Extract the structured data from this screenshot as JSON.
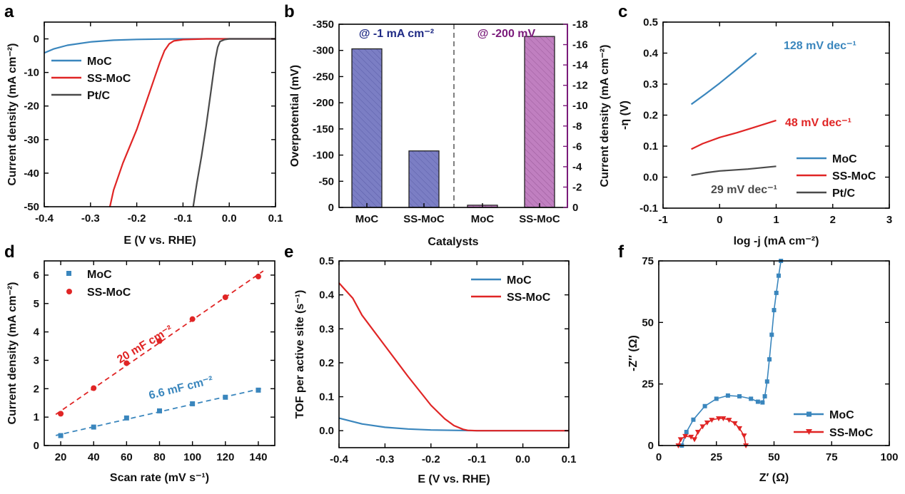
{
  "colors": {
    "moc": "#3a86bd",
    "ssmoc": "#e02525",
    "ptc": "#4a4a4a",
    "bar_blue": "#7b7ec4",
    "bar_purple": "#c07fc0",
    "text_navy": "#1f2a85",
    "text_purple": "#7a1a7a"
  },
  "chart_data": [
    {
      "id": "a",
      "panel_label": "a",
      "type": "line",
      "xlabel": "E (V vs. RHE)",
      "ylabel": "Current density (mA cm⁻²)",
      "xlim": [
        -0.4,
        0.1
      ],
      "ylim": [
        -50,
        5
      ],
      "xticks": [
        "-0.4",
        "-0.3",
        "-0.2",
        "-0.1",
        "0.0",
        "0.1"
      ],
      "yticks": [
        "-50",
        "-40",
        "-30",
        "-20",
        "-10",
        "0"
      ],
      "legend": "upper-left",
      "series": [
        {
          "name": "MoC",
          "x": [
            -0.4,
            -0.38,
            -0.35,
            -0.3,
            -0.25,
            -0.2,
            -0.15,
            -0.1,
            -0.05,
            0.0,
            0.1
          ],
          "y": [
            -4.2,
            -3.0,
            -1.9,
            -0.9,
            -0.4,
            -0.15,
            -0.05,
            -0.02,
            0,
            0,
            0
          ]
        },
        {
          "name": "SS-MoC",
          "x": [
            -0.258,
            -0.25,
            -0.23,
            -0.2,
            -0.18,
            -0.16,
            -0.15,
            -0.14,
            -0.13,
            -0.12,
            -0.1,
            -0.05,
            0.0,
            0.1
          ],
          "y": [
            -50,
            -45,
            -37,
            -27,
            -19,
            -11,
            -7,
            -3.5,
            -1.5,
            -0.6,
            -0.2,
            0,
            0,
            0
          ]
        },
        {
          "name": "Pt/C",
          "x": [
            -0.078,
            -0.07,
            -0.06,
            -0.05,
            -0.04,
            -0.035,
            -0.03,
            -0.025,
            -0.02,
            -0.01,
            0.0,
            0.1
          ],
          "y": [
            -50,
            -43,
            -35,
            -26,
            -16,
            -11,
            -6,
            -2.5,
            -0.8,
            -0.2,
            0,
            0
          ]
        }
      ]
    },
    {
      "id": "b",
      "panel_label": "b",
      "type": "bar",
      "xlabel": "Catalysts",
      "ylabel": "Overpotential (mV)",
      "ylabel_right": "Current density (mA cm⁻²)",
      "categories": [
        "MoC",
        "SS-MoC",
        "MoC",
        "SS-MoC"
      ],
      "left_axis": {
        "ylim": [
          0,
          -350
        ],
        "ticks": [
          "0",
          "-50",
          "-100",
          "-150",
          "-200",
          "-250",
          "-300",
          "-350"
        ]
      },
      "right_axis": {
        "ylim": [
          0,
          -18
        ],
        "ticks": [
          "0",
          "-2",
          "-4",
          "-6",
          "-8",
          "-10",
          "-12",
          "-14",
          "-16",
          "-18"
        ]
      },
      "groups": [
        {
          "name": "@ -1 mA cm⁻²",
          "axis": "left",
          "values": [
            -303,
            -108
          ]
        },
        {
          "name": "@ -200 mV",
          "axis": "right",
          "values": [
            -0.22,
            -16.8
          ]
        }
      ]
    },
    {
      "id": "c",
      "panel_label": "c",
      "type": "line",
      "xlabel": "log -j (mA cm⁻²)",
      "ylabel": "-η (V)",
      "xlim": [
        -1,
        3
      ],
      "ylim": [
        -0.1,
        0.5
      ],
      "xticks": [
        "-1",
        "0",
        "1",
        "2",
        "3"
      ],
      "yticks": [
        "-0.1",
        "0.0",
        "0.1",
        "0.2",
        "0.3",
        "0.4",
        "0.5"
      ],
      "legend": "lower-right",
      "series": [
        {
          "name": "MoC",
          "x": [
            -0.5,
            -0.25,
            0,
            0.25,
            0.5,
            0.65
          ],
          "y": [
            0.235,
            0.268,
            0.303,
            0.34,
            0.378,
            0.4
          ]
        },
        {
          "name": "SS-MoC",
          "x": [
            -0.5,
            -0.3,
            0,
            0.3,
            0.6,
            1.0
          ],
          "y": [
            0.09,
            0.108,
            0.128,
            0.143,
            0.16,
            0.183
          ]
        },
        {
          "name": "Pt/C",
          "x": [
            -0.5,
            -0.25,
            0,
            0.5,
            1.0
          ],
          "y": [
            0.006,
            0.014,
            0.02,
            0.026,
            0.035
          ]
        }
      ],
      "annotations": [
        {
          "text": "128 mV dec⁻¹",
          "series": "MoC"
        },
        {
          "text": "48 mV dec⁻¹",
          "series": "SS-MoC"
        },
        {
          "text": "29 mV dec⁻¹",
          "series": "Pt/C"
        }
      ]
    },
    {
      "id": "d",
      "panel_label": "d",
      "type": "scatter",
      "xlabel": "Scan rate (mV s⁻¹)",
      "ylabel": "Current density (mA cm⁻²)",
      "xlim": [
        10,
        150
      ],
      "ylim": [
        0,
        6.5
      ],
      "xticks": [
        "20",
        "40",
        "60",
        "80",
        "100",
        "120",
        "140"
      ],
      "yticks": [
        "0",
        "1",
        "2",
        "3",
        "4",
        "5",
        "6"
      ],
      "legend": "upper-left",
      "series": [
        {
          "name": "MoC",
          "x": [
            20,
            40,
            60,
            80,
            100,
            120,
            140
          ],
          "y": [
            0.35,
            0.65,
            0.97,
            1.22,
            1.47,
            1.7,
            1.95
          ]
        },
        {
          "name": "SS-MoC",
          "x": [
            20,
            40,
            60,
            80,
            100,
            120,
            140
          ],
          "y": [
            1.12,
            2.02,
            2.9,
            3.68,
            4.45,
            5.22,
            5.95
          ]
        }
      ],
      "annotations": [
        {
          "text": "6.6 mF cm⁻²",
          "series": "MoC"
        },
        {
          "text": "20 mF cm⁻²",
          "series": "SS-MoC"
        }
      ]
    },
    {
      "id": "e",
      "panel_label": "e",
      "type": "line",
      "xlabel": "E (V vs. RHE)",
      "ylabel": "TOF per active site (s⁻¹)",
      "xlim": [
        -0.4,
        0.1
      ],
      "ylim": [
        -0.05,
        0.5
      ],
      "xticks": [
        "-0.4",
        "-0.3",
        "-0.2",
        "-0.1",
        "0.0",
        "0.1"
      ],
      "yticks": [
        "0.0",
        "0.1",
        "0.2",
        "0.3",
        "0.4",
        "0.5"
      ],
      "legend": "upper-right",
      "series": [
        {
          "name": "MoC",
          "x": [
            -0.4,
            -0.35,
            -0.3,
            -0.25,
            -0.2,
            -0.15,
            -0.1,
            0.0,
            0.1
          ],
          "y": [
            0.037,
            0.02,
            0.01,
            0.005,
            0.002,
            0.001,
            0,
            0,
            0
          ]
        },
        {
          "name": "SS-MoC",
          "x": [
            -0.4,
            -0.39,
            -0.37,
            -0.35,
            -0.3,
            -0.25,
            -0.2,
            -0.17,
            -0.15,
            -0.13,
            -0.12,
            -0.1,
            0.0,
            0.1
          ],
          "y": [
            0.435,
            0.42,
            0.39,
            0.34,
            0.25,
            0.16,
            0.075,
            0.035,
            0.015,
            0.004,
            0.001,
            0,
            0,
            0
          ]
        }
      ]
    },
    {
      "id": "f",
      "panel_label": "f",
      "type": "scatter",
      "xlabel": "Z′ (Ω)",
      "ylabel": "-Z″ (Ω)",
      "xlim": [
        0,
        100
      ],
      "ylim": [
        0,
        75
      ],
      "xticks": [
        "0",
        "25",
        "50",
        "75",
        "100"
      ],
      "yticks": [
        "0",
        "25",
        "50",
        "75"
      ],
      "legend": "lower-right",
      "series": [
        {
          "name": "MoC",
          "x": [
            10,
            12,
            15,
            20,
            25,
            30,
            35,
            40,
            43,
            45,
            46,
            47,
            48,
            49,
            50,
            51,
            52,
            53
          ],
          "y": [
            0,
            5.5,
            10.5,
            16,
            19,
            20.3,
            20,
            19,
            17.8,
            17.5,
            20,
            26,
            35,
            45,
            55,
            62,
            69,
            75
          ]
        },
        {
          "name": "SS-MoC",
          "x": [
            8.5,
            9.5,
            11.5,
            14,
            15.5,
            17,
            19,
            21,
            23,
            26,
            28,
            30.5,
            33,
            35,
            37,
            37.8
          ],
          "y": [
            0,
            2.5,
            3.8,
            3.5,
            2.5,
            5.5,
            7.7,
            9.3,
            10.4,
            11,
            11,
            10.4,
            9,
            7,
            4,
            0
          ]
        }
      ]
    }
  ]
}
